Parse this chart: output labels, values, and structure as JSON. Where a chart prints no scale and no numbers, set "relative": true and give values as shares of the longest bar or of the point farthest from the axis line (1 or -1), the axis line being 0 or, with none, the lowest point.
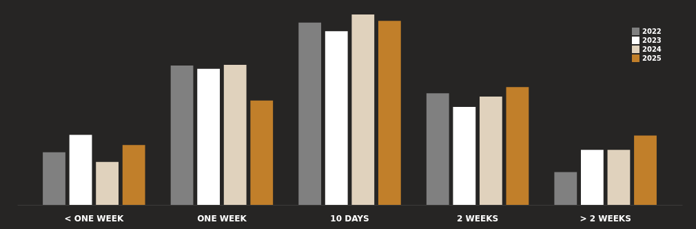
{
  "chart_data": {
    "type": "bar",
    "relative": true,
    "categories": [
      "< ONE WEEK",
      "ONE WEEK",
      "10 DAYS",
      "2 WEEKS",
      "> 2 WEEKS"
    ],
    "series": [
      {
        "name": "2022",
        "color": "#808080",
        "values": [
          0.276,
          0.732,
          0.958,
          0.586,
          0.172
        ]
      },
      {
        "name": "2023",
        "color": "#ffffff",
        "values": [
          0.368,
          0.715,
          0.912,
          0.515,
          0.289
        ]
      },
      {
        "name": "2024",
        "color": "#e0d2bd",
        "values": [
          0.226,
          0.736,
          1,
          0.569,
          0.289
        ]
      },
      {
        "name": "2025",
        "color": "#c17f2a",
        "values": [
          0.314,
          0.548,
          0.967,
          0.619,
          0.364
        ]
      }
    ],
    "legend": "top right",
    "grid": false
  }
}
